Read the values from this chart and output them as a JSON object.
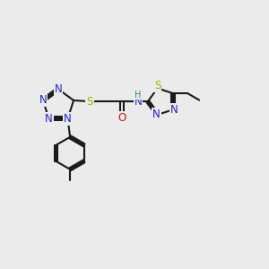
{
  "bg_color": "#ebebeb",
  "bond_color": "#1a1a1a",
  "bond_width": 1.5,
  "atom_colors": {
    "N": "#2222cc",
    "S": "#aaaa00",
    "O": "#cc1111",
    "H": "#338888",
    "C": "#1a1a1a"
  },
  "font_size_atom": 8.5,
  "font_size_h": 7.0
}
